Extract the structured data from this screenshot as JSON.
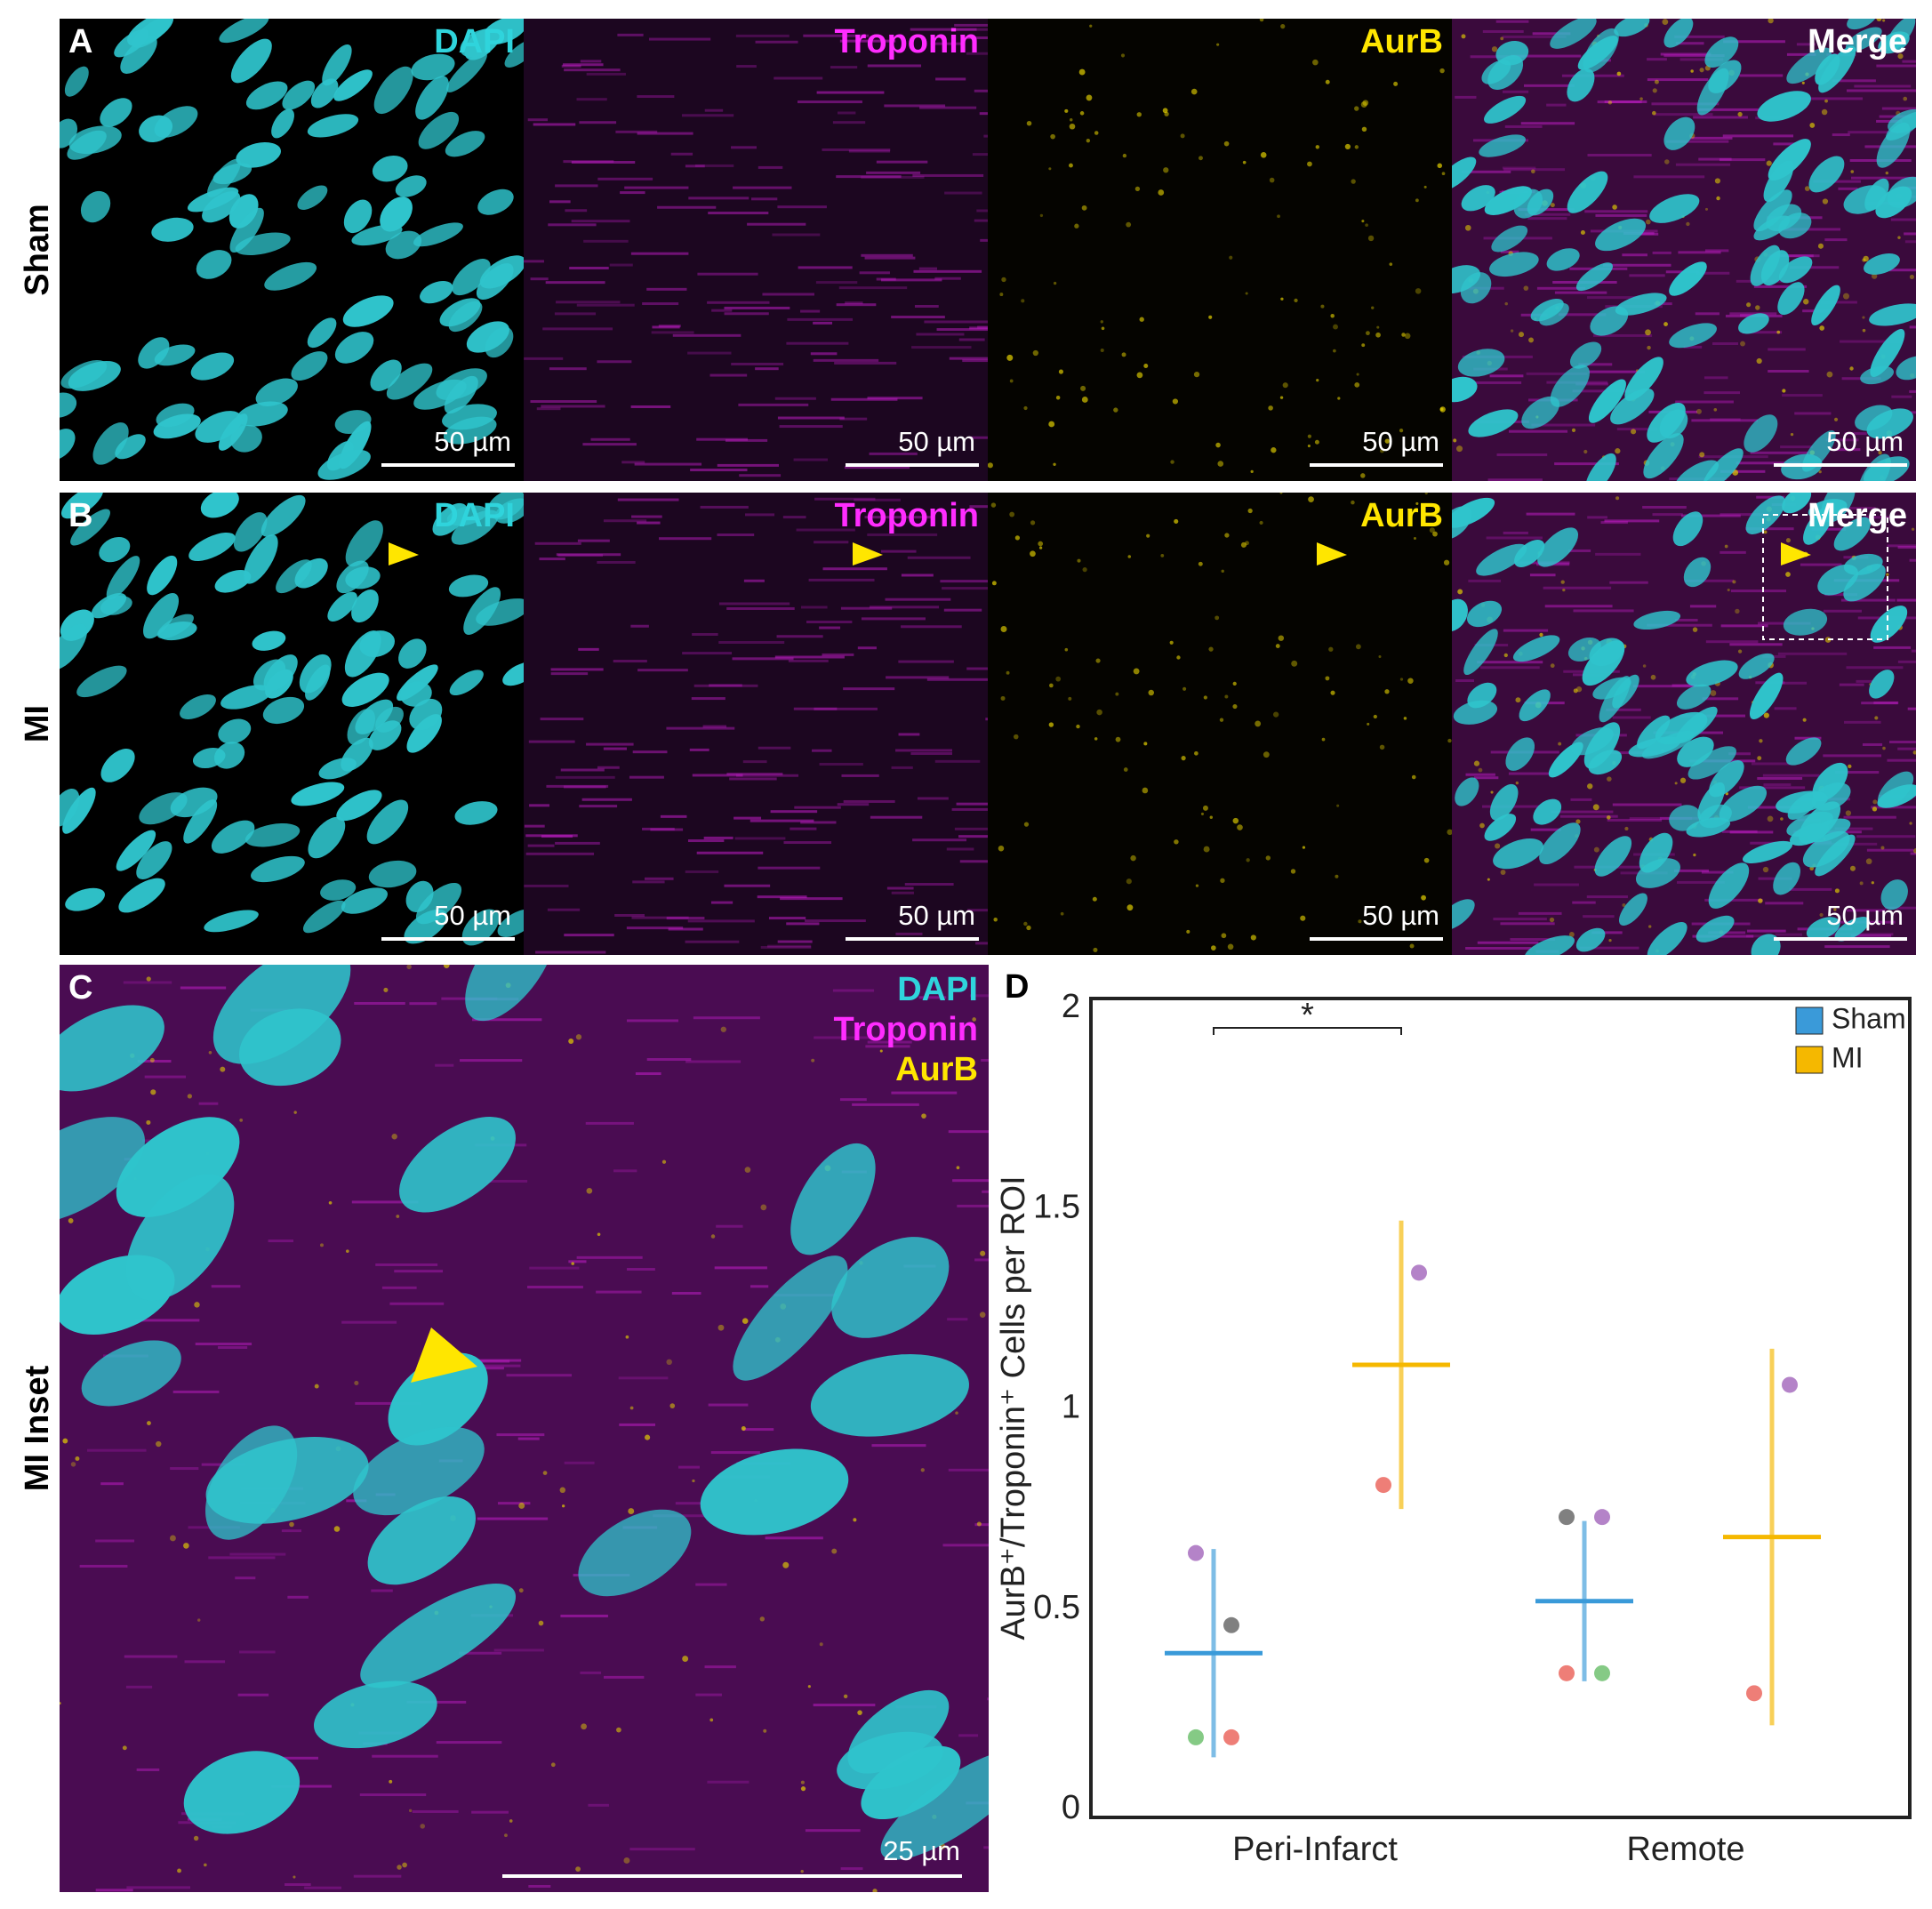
{
  "panels": {
    "rows": [
      {
        "letter": "A",
        "label": "Sham",
        "channels": [
          "DAPI",
          "Troponin",
          "AurB",
          "Merge"
        ],
        "scale_bars": [
          "50 µm",
          "50 µm",
          "50 µm",
          "50 µm"
        ]
      },
      {
        "letter": "B",
        "label": "MI",
        "channels": [
          "DAPI",
          "Troponin",
          "AurB",
          "Merge"
        ],
        "scale_bars": [
          "50 µm",
          "50 µm",
          "50 µm",
          "50 µm"
        ]
      }
    ],
    "inset": {
      "letter": "C",
      "label": "MI Inset",
      "channels": [
        "DAPI",
        "Troponin",
        "AurB"
      ],
      "scale_bar": "25 µm"
    }
  },
  "chart_data": {
    "type": "errorbar",
    "letter": "D",
    "ylabel": "AurB⁺/Troponin⁺ Cells per ROI",
    "categories": [
      "Peri-Infarct",
      "Remote"
    ],
    "ylim": [
      0,
      2
    ],
    "yticks": [
      0,
      0.5,
      1,
      1.5,
      2
    ],
    "grid": false,
    "legend": "upper right",
    "significance": "*",
    "series": [
      {
        "name": "Sham",
        "color": "#3a9ad9",
        "values": [
          0.39,
          0.52
        ],
        "errors": [
          0.26,
          0.2
        ],
        "points": [
          [
            {
              "value": 0.64,
              "color": "#9b59b6"
            },
            {
              "value": 0.46,
              "color": "#555555"
            },
            {
              "value": 0.18,
              "color": "#5cb85c"
            },
            {
              "value": 0.18,
              "color": "#e8534a"
            }
          ],
          [
            {
              "value": 0.73,
              "color": "#555555"
            },
            {
              "value": 0.73,
              "color": "#9b59b6"
            },
            {
              "value": 0.34,
              "color": "#e8534a"
            },
            {
              "value": 0.34,
              "color": "#5cb85c"
            }
          ]
        ]
      },
      {
        "name": "MI",
        "color": "#f5b800",
        "values": [
          1.11,
          0.68
        ],
        "errors": [
          0.36,
          0.47
        ],
        "points": [
          [
            {
              "value": 0.81,
              "color": "#e8534a"
            },
            {
              "value": 1.34,
              "color": "#9b59b6"
            }
          ],
          [
            {
              "value": 0.29,
              "color": "#e8534a"
            },
            {
              "value": 1.06,
              "color": "#9b59b6"
            }
          ]
        ]
      }
    ]
  }
}
